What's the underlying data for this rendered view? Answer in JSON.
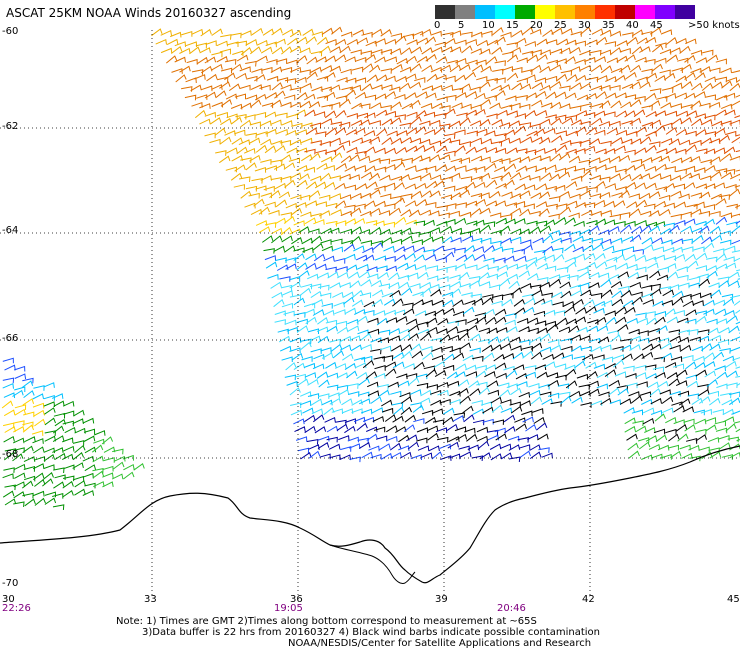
{
  "title": "ASCAT 25KM NOAA Winds 20160327 ascending",
  "scale": {
    "labels": [
      "0",
      "5",
      "10",
      "15",
      "20",
      "25",
      "30",
      "35",
      "40",
      "45",
      ">50 knots"
    ],
    "colors": [
      "#303030",
      "#808080",
      "#00bfff",
      "#00ffff",
      "#00aa00",
      "#ffff00",
      "#ffc000",
      "#ff8000",
      "#ff3000",
      "#c00000",
      "#ff00ff",
      "#8000ff",
      "#4000a0"
    ]
  },
  "lat_labels": [
    "-60",
    "-62",
    "-64",
    "-66",
    "-68",
    "-70"
  ],
  "lon_labels": [
    "30",
    "33",
    "36",
    "39",
    "42",
    "45"
  ],
  "time_labels": [
    "22:26",
    "19:05",
    "20:46"
  ],
  "notes": [
    "Note: 1) Times are GMT 2)Times along bottom correspond to measurement at ~65S",
    "3)Data buffer is 22 hrs from 20160327 4) Black wind barbs indicate possible contamination",
    "NOAA/NESDIS/Center for Satellite Applications and Research"
  ],
  "wind_colors": {
    "black": "#000000",
    "dark_blue": "#0000a0",
    "blue": "#1e50ff",
    "cyan": "#00c0ff",
    "light_cyan": "#40e0ff",
    "green": "#009000",
    "light_green": "#30c030",
    "yellow": "#ffd000",
    "gold": "#f0b000",
    "orange": "#e07000",
    "red_orange": "#e05000"
  }
}
